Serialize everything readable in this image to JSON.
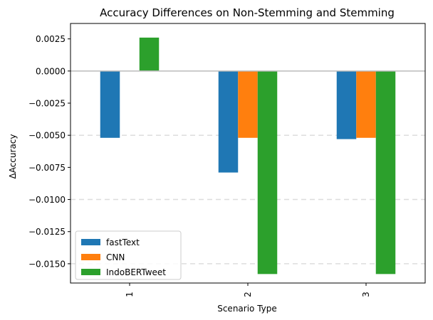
{
  "chart_data": {
    "type": "bar",
    "title": "Accuracy Differences on Non-Stemming and Stemming",
    "xlabel": "Scenario Type",
    "ylabel": "ΔAccuracy",
    "categories": [
      "1",
      "2",
      "3"
    ],
    "series": [
      {
        "name": "fastText",
        "color": "#1f77b4",
        "values": [
          -0.0052,
          -0.0079,
          -0.0053
        ]
      },
      {
        "name": "CNN",
        "color": "#ff7f0e",
        "values": [
          0,
          -0.0052,
          -0.0052
        ]
      },
      {
        "name": "IndoBERTweet",
        "color": "#2ca02c",
        "values": [
          0.0026,
          -0.0158,
          -0.0158
        ]
      }
    ],
    "ylim": [
      -0.0165,
      0.0037
    ],
    "yticks": [
      "0.0025",
      "0.0000",
      "−0.0025",
      "−0.0050",
      "−0.0075",
      "−0.0100",
      "−0.0125",
      "−0.0150"
    ],
    "ytick_values": [
      0.0025,
      0,
      -0.0025,
      -0.005,
      -0.0075,
      -0.01,
      -0.0125,
      -0.015
    ],
    "dashed_reference_lines": [
      -0.005,
      -0.01,
      -0.015
    ],
    "legend_position": "lower-left"
  }
}
